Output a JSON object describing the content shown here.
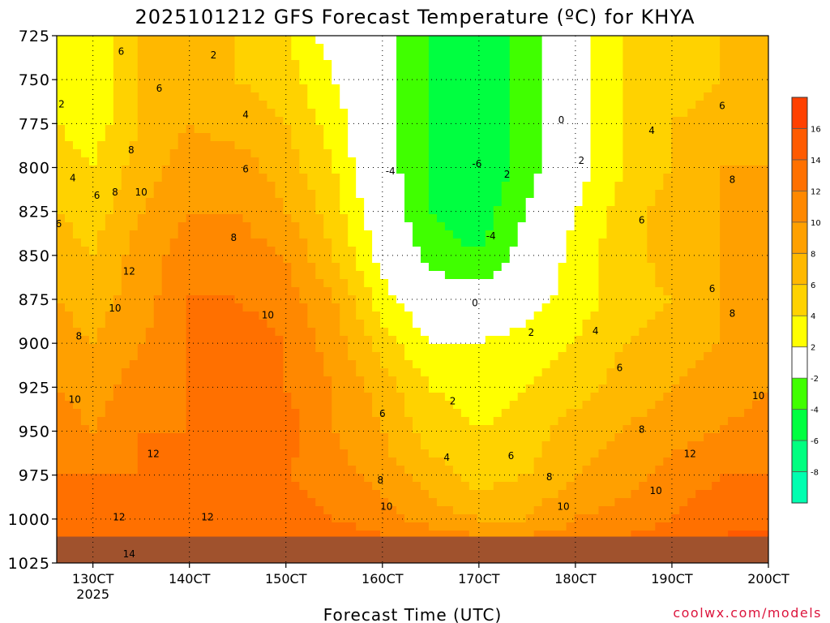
{
  "chart_data": {
    "type": "heatmap",
    "title": "2025101212 GFS Forecast Temperature (ºC) for KHYA",
    "xlabel": "Forecast Time (UTC)",
    "ylabel": "",
    "source_credit": "coolwx.com/models",
    "x_ticks": [
      {
        "value": 0,
        "label": "130CT",
        "sublabel": "2025"
      },
      {
        "value": 24,
        "label": "140CT"
      },
      {
        "value": 48,
        "label": "150CT"
      },
      {
        "value": 72,
        "label": "160CT"
      },
      {
        "value": 96,
        "label": "170CT"
      },
      {
        "value": 120,
        "label": "180CT"
      },
      {
        "value": 144,
        "label": "190CT"
      },
      {
        "value": 168,
        "label": "200CT"
      }
    ],
    "xlim": [
      -9,
      168
    ],
    "y_ticks": [
      725,
      750,
      775,
      800,
      825,
      850,
      875,
      900,
      925,
      950,
      975,
      1000,
      1025
    ],
    "ylim": [
      725,
      1025
    ],
    "y_units": "hPa",
    "surface_pressure_hpa": 1010,
    "colorbar": {
      "labels": [
        "16",
        "14",
        "12",
        "10",
        "8",
        "6",
        "4",
        "2",
        "-2",
        "-4",
        "-6",
        "-8"
      ],
      "bins": [
        {
          "min": 16,
          "max": 18,
          "color": "#ff4000"
        },
        {
          "min": 14,
          "max": 16,
          "color": "#ff5a00"
        },
        {
          "min": 12,
          "max": 14,
          "color": "#ff7000"
        },
        {
          "min": 10,
          "max": 12,
          "color": "#ff8800"
        },
        {
          "min": 8,
          "max": 10,
          "color": "#ffa000"
        },
        {
          "min": 6,
          "max": 8,
          "color": "#ffb800"
        },
        {
          "min": 4,
          "max": 6,
          "color": "#ffd200"
        },
        {
          "min": 2,
          "max": 4,
          "color": "#ffff00"
        },
        {
          "min": -2,
          "max": 2,
          "color": "#ffffff"
        },
        {
          "min": -4,
          "max": -2,
          "color": "#40ff00"
        },
        {
          "min": -6,
          "max": -4,
          "color": "#00ff40"
        },
        {
          "min": -8,
          "max": -6,
          "color": "#00ff80"
        },
        {
          "min": -10,
          "max": -8,
          "color": "#00ffb0"
        }
      ]
    },
    "grid": true,
    "samples": {
      "times": [
        -9,
        0,
        12,
        24,
        36,
        48,
        60,
        72,
        84,
        96,
        108,
        120,
        132,
        144,
        156,
        168
      ],
      "levels": [
        725,
        750,
        775,
        800,
        825,
        850,
        875,
        900,
        925,
        950,
        975,
        1000,
        1010
      ],
      "temps": [
        [
          3,
          2,
          6,
          6,
          6,
          4,
          1,
          -1,
          -4,
          -6,
          -3,
          1,
          4,
          5,
          6,
          6
        ],
        [
          3,
          2,
          6,
          7,
          6,
          5,
          2,
          -1,
          -4,
          -6,
          -3,
          1,
          4,
          5,
          6,
          7
        ],
        [
          4,
          3,
          6,
          8,
          7,
          6,
          3,
          -1,
          -4,
          -6,
          -3,
          1,
          4,
          6,
          7,
          7
        ],
        [
          5,
          4,
          7,
          9,
          9,
          7,
          4,
          -1,
          -4,
          -6,
          -3,
          1,
          4,
          6,
          8,
          8
        ],
        [
          6,
          5,
          8,
          10,
          10,
          8,
          5,
          0,
          -4,
          -5,
          -2,
          2,
          5,
          7,
          8,
          8
        ],
        [
          7,
          6,
          9,
          11,
          11,
          10,
          6,
          1,
          -3,
          -4,
          -1,
          3,
          5,
          7,
          8,
          9
        ],
        [
          8,
          7,
          9,
          12,
          12,
          11,
          8,
          3,
          0,
          -1,
          1,
          3,
          5,
          6,
          8,
          9
        ],
        [
          9,
          8,
          10,
          12,
          13,
          12,
          9,
          5,
          2,
          2,
          3,
          4,
          6,
          7,
          8,
          9
        ],
        [
          10,
          9,
          11,
          12,
          13,
          12,
          10,
          7,
          4,
          3,
          4,
          5,
          7,
          8,
          9,
          10
        ],
        [
          11,
          10,
          12,
          12,
          12,
          13,
          10,
          8,
          5,
          4,
          5,
          7,
          8,
          9,
          10,
          11
        ],
        [
          12,
          12,
          12,
          12,
          12,
          12,
          11,
          9,
          7,
          5,
          6,
          8,
          9,
          11,
          12,
          12
        ],
        [
          13,
          13,
          13,
          13,
          13,
          13,
          12,
          11,
          9,
          8,
          8,
          10,
          11,
          12,
          13,
          13
        ],
        [
          14,
          14,
          14,
          14,
          14,
          14,
          13,
          12,
          11,
          10,
          10,
          11,
          12,
          13,
          14,
          15
        ]
      ]
    },
    "contour_labels": [
      {
        "text": "2",
        "t": -7.8,
        "p": 764
      },
      {
        "text": "2",
        "t": 30.0,
        "p": 736
      },
      {
        "text": "4",
        "t": -5.0,
        "p": 806
      },
      {
        "text": "6",
        "t": 7.0,
        "p": 734
      },
      {
        "text": "6",
        "t": 16.5,
        "p": 755
      },
      {
        "text": "6",
        "t": 1.0,
        "p": 816
      },
      {
        "text": "6",
        "t": -8.5,
        "p": 832
      },
      {
        "text": "4",
        "t": 38.0,
        "p": 770
      },
      {
        "text": "6",
        "t": 38.0,
        "p": 801
      },
      {
        "text": "8",
        "t": 9.5,
        "p": 790
      },
      {
        "text": "8",
        "t": 5.5,
        "p": 814
      },
      {
        "text": "10",
        "t": 12.0,
        "p": 814
      },
      {
        "text": "8",
        "t": 35.0,
        "p": 840
      },
      {
        "text": "12",
        "t": 9.0,
        "p": 859
      },
      {
        "text": "10",
        "t": 5.5,
        "p": 880
      },
      {
        "text": "10",
        "t": 43.5,
        "p": 884
      },
      {
        "text": "8",
        "t": -3.5,
        "p": 896
      },
      {
        "text": "10",
        "t": -4.5,
        "p": 932
      },
      {
        "text": "12",
        "t": 15.0,
        "p": 963
      },
      {
        "text": "12",
        "t": 6.5,
        "p": 999
      },
      {
        "text": "12",
        "t": 28.5,
        "p": 999
      },
      {
        "text": "14",
        "t": 9.0,
        "p": 1020
      },
      {
        "text": "-4",
        "t": 74.0,
        "p": 802
      },
      {
        "text": "-6",
        "t": 95.5,
        "p": 798
      },
      {
        "text": "2",
        "t": 103.0,
        "p": 804
      },
      {
        "text": "-4",
        "t": 99.0,
        "p": 839
      },
      {
        "text": "0",
        "t": 116.5,
        "p": 773
      },
      {
        "text": "2",
        "t": 121.5,
        "p": 796
      },
      {
        "text": "4",
        "t": 139.0,
        "p": 779
      },
      {
        "text": "6",
        "t": 156.5,
        "p": 765
      },
      {
        "text": "8",
        "t": 159.0,
        "p": 807
      },
      {
        "text": "6",
        "t": 136.5,
        "p": 830
      },
      {
        "text": "6",
        "t": 154.0,
        "p": 869
      },
      {
        "text": "8",
        "t": 159.0,
        "p": 883
      },
      {
        "text": "4",
        "t": 125.0,
        "p": 893
      },
      {
        "text": "6",
        "t": 131.0,
        "p": 914
      },
      {
        "text": "10",
        "t": 165.5,
        "p": 930
      },
      {
        "text": "8",
        "t": 136.5,
        "p": 949
      },
      {
        "text": "12",
        "t": 148.5,
        "p": 963
      },
      {
        "text": "10",
        "t": 140.0,
        "p": 984
      },
      {
        "text": "0",
        "t": 95.0,
        "p": 877
      },
      {
        "text": "2",
        "t": 109.0,
        "p": 894
      },
      {
        "text": "2",
        "t": 89.5,
        "p": 933
      },
      {
        "text": "6",
        "t": 72.0,
        "p": 940
      },
      {
        "text": "4",
        "t": 88.0,
        "p": 965
      },
      {
        "text": "6",
        "t": 104.0,
        "p": 964
      },
      {
        "text": "8",
        "t": 71.5,
        "p": 978
      },
      {
        "text": "8",
        "t": 113.5,
        "p": 976
      },
      {
        "text": "10",
        "t": 73.0,
        "p": 993
      },
      {
        "text": "10",
        "t": 117.0,
        "p": 993
      }
    ]
  }
}
